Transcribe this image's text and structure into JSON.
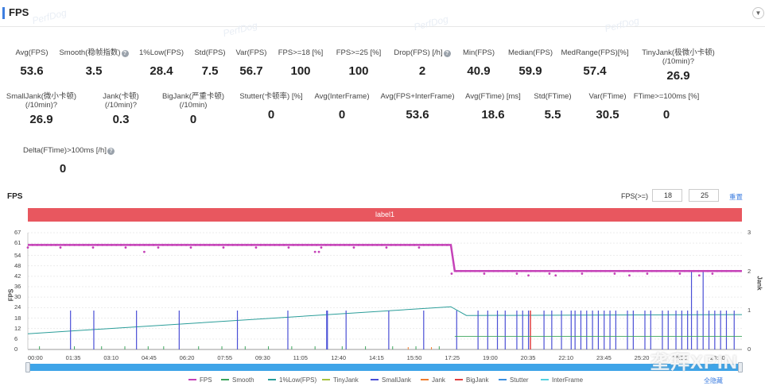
{
  "header": {
    "title": "FPS",
    "collapse_icon": "chevron-down-icon"
  },
  "watermarks": [
    "PerfDog",
    "PerfDog",
    "PerfDog",
    "PerfDog"
  ],
  "stats_row1": [
    {
      "label": "Avg(FPS)",
      "value": "53.6"
    },
    {
      "label": "Smooth(稳帧指数)",
      "value": "3.5",
      "help": "?"
    },
    {
      "label": "1%Low(FPS)",
      "value": "28.4"
    },
    {
      "label": "Std(FPS)",
      "value": "7.5"
    },
    {
      "label": "Var(FPS)",
      "value": "56.7"
    },
    {
      "label": "FPS>=18 [%]",
      "value": "100"
    },
    {
      "label": "FPS>=25 [%]",
      "value": "100"
    },
    {
      "label": "Drop(FPS) [/h]",
      "value": "2",
      "help": "?"
    },
    {
      "label": "Min(FPS)",
      "value": "40.9"
    },
    {
      "label": "Median(FPS)",
      "value": "59.9"
    },
    {
      "label": "MedRange(FPS)[%]",
      "value": "57.4"
    },
    {
      "label": "TinyJank(极微小卡顿)",
      "label2": "(/10min)",
      "value": "26.9",
      "help": "?"
    }
  ],
  "stats_row2": [
    {
      "label": "SmallJank(微小卡顿)",
      "label2": "(/10min)",
      "value": "26.9",
      "help": "?"
    },
    {
      "label": "Jank(卡顿)",
      "label2": "(/10min)",
      "value": "0.3",
      "help": "?"
    },
    {
      "label": "BigJank(严重卡顿)",
      "label2": "(/10min)",
      "value": "0"
    },
    {
      "label": "Stutter(卡顿率) [%]",
      "value": "0"
    },
    {
      "label": "Avg(InterFrame)",
      "value": "0"
    },
    {
      "label": "Avg(FPS+InterFrame)",
      "value": "53.6"
    },
    {
      "label": "Avg(FTime) [ms]",
      "value": "18.6"
    },
    {
      "label": "Std(FTime)",
      "value": "5.5"
    },
    {
      "label": "Var(FTime)",
      "value": "30.5"
    },
    {
      "label": "FTime>=100ms [%]",
      "value": "0"
    }
  ],
  "stats_row3": [
    {
      "label": "Delta(FTime)>100ms [/h]",
      "value": "0",
      "help": "?"
    }
  ],
  "chart": {
    "title": "FPS",
    "threshold_label": "FPS(>=)",
    "threshold1": "18",
    "threshold2": "25",
    "reset_label": "重置",
    "label_bar": "label1",
    "y_axis_label": "FPS",
    "y2_axis_label": "Jank",
    "hide_all_label": "全隐藏",
    "site_watermark": "垄拜XPIN"
  },
  "chart_data": {
    "type": "line",
    "title": "FPS",
    "xlabel": "",
    "ylabel": "FPS",
    "y2label": "Jank",
    "ylim": [
      0,
      67
    ],
    "y2lim": [
      0,
      3
    ],
    "yticks": [
      "67",
      "61",
      "54",
      "48",
      "42",
      "36",
      "30",
      "24",
      "18",
      "12",
      "6",
      "0"
    ],
    "y2ticks": [
      "3",
      "2",
      "1",
      "0"
    ],
    "xticks": [
      "00:00",
      "01:35",
      "03:10",
      "04:45",
      "06:20",
      "07:55",
      "09:30",
      "11:05",
      "12:40",
      "14:15",
      "15:50",
      "17:25",
      "19:00",
      "20:35",
      "22:10",
      "23:45",
      "25:20",
      "26:55",
      "28:30"
    ],
    "series": [
      {
        "name": "FPS",
        "color": "#c542b8",
        "points": [
          [
            0,
            60
          ],
          [
            1,
            60
          ],
          [
            2,
            60
          ],
          [
            3,
            60
          ],
          [
            4,
            60
          ],
          [
            5,
            60
          ],
          [
            6,
            60
          ],
          [
            7,
            60
          ],
          [
            8,
            60
          ],
          [
            9,
            60
          ],
          [
            10,
            60
          ],
          [
            10.9,
            60
          ],
          [
            11,
            45
          ],
          [
            12,
            45
          ],
          [
            13,
            45
          ],
          [
            14,
            45
          ],
          [
            15,
            45
          ],
          [
            16,
            45
          ],
          [
            17,
            45
          ],
          [
            18,
            45
          ],
          [
            18.4,
            45
          ]
        ]
      },
      {
        "name": "Smooth",
        "color": "#3ba55c",
        "points": []
      },
      {
        "name": "1%Low(FPS)",
        "color": "#2a9d99",
        "points": [
          [
            0,
            9
          ],
          [
            10.9,
            24.5
          ],
          [
            11.3,
            19.5
          ],
          [
            18.4,
            20
          ]
        ]
      },
      {
        "name": "TinyJank",
        "color": "#a8c23f",
        "points": []
      },
      {
        "name": "SmallJank",
        "color": "#4a4fd6",
        "points": []
      },
      {
        "name": "Jank",
        "color": "#f07d2e",
        "points": []
      },
      {
        "name": "BigJank",
        "color": "#e23e3e",
        "points": []
      },
      {
        "name": "Stutter",
        "color": "#3b8fe0",
        "points": []
      },
      {
        "name": "InterFrame",
        "color": "#55d2e0",
        "points": []
      }
    ]
  },
  "colors": {
    "accent": "#3d7ee0",
    "label_bar": "#e8575f",
    "slider": "#3ea4e8"
  }
}
